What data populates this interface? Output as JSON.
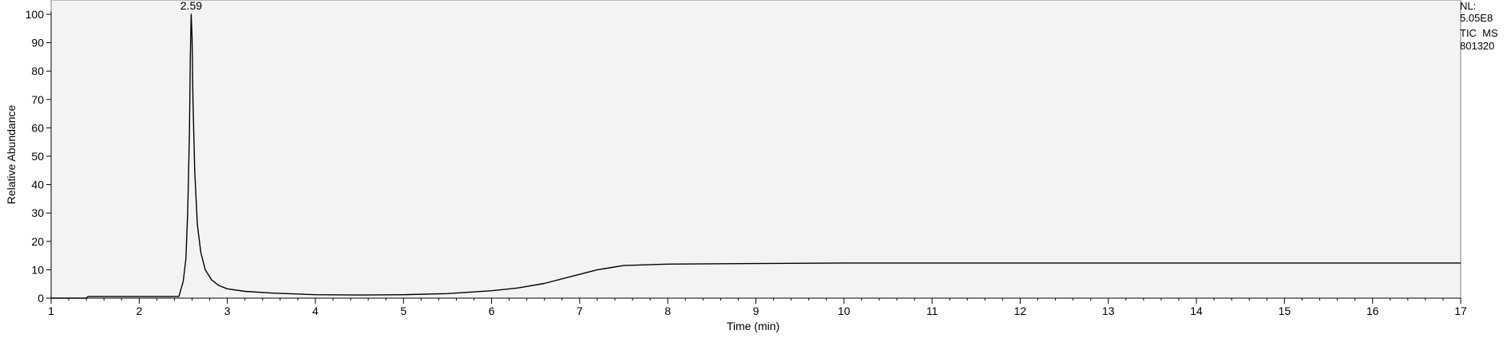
{
  "chart_data": {
    "type": "line",
    "xlabel": "Time (min)",
    "ylabel": "Relative Abundance",
    "xlim": [
      1,
      17
    ],
    "ylim": [
      0,
      100
    ],
    "xticks": [
      1,
      2,
      3,
      4,
      5,
      6,
      7,
      8,
      9,
      10,
      11,
      12,
      13,
      14,
      15,
      16,
      17
    ],
    "yticks": [
      0,
      10,
      20,
      30,
      40,
      50,
      60,
      70,
      80,
      90,
      100
    ],
    "grid": false,
    "peak_labels": [
      {
        "x": 2.59,
        "y": 100,
        "label": "2.59"
      }
    ],
    "info": {
      "nl_label": "NL:",
      "nl_value": "5.05E8",
      "trace_label": "TIC  MS",
      "sample_id": "801320"
    },
    "series": [
      {
        "x": [
          1.0,
          1.4,
          1.42,
          2.0,
          2.45,
          2.5,
          2.53,
          2.55,
          2.57,
          2.58,
          2.59,
          2.6,
          2.61,
          2.63,
          2.66,
          2.7,
          2.75,
          2.82,
          2.9,
          3.0,
          3.2,
          3.5,
          4.0,
          4.5,
          5.0,
          5.5,
          6.0,
          6.3,
          6.6,
          6.9,
          7.2,
          7.5,
          8.0,
          9.0,
          10.0,
          12.0,
          14.0,
          16.0,
          17.0
        ],
        "y": [
          0,
          0,
          0.6,
          0.6,
          0.6,
          6,
          14,
          30,
          58,
          85,
          100,
          92,
          70,
          45,
          26,
          16,
          10,
          6.5,
          4.5,
          3.3,
          2.4,
          1.8,
          1.2,
          1.1,
          1.2,
          1.6,
          2.6,
          3.6,
          5.2,
          7.6,
          10.0,
          11.5,
          12.0,
          12.2,
          12.4,
          12.4,
          12.4,
          12.4,
          12.4
        ]
      }
    ]
  }
}
